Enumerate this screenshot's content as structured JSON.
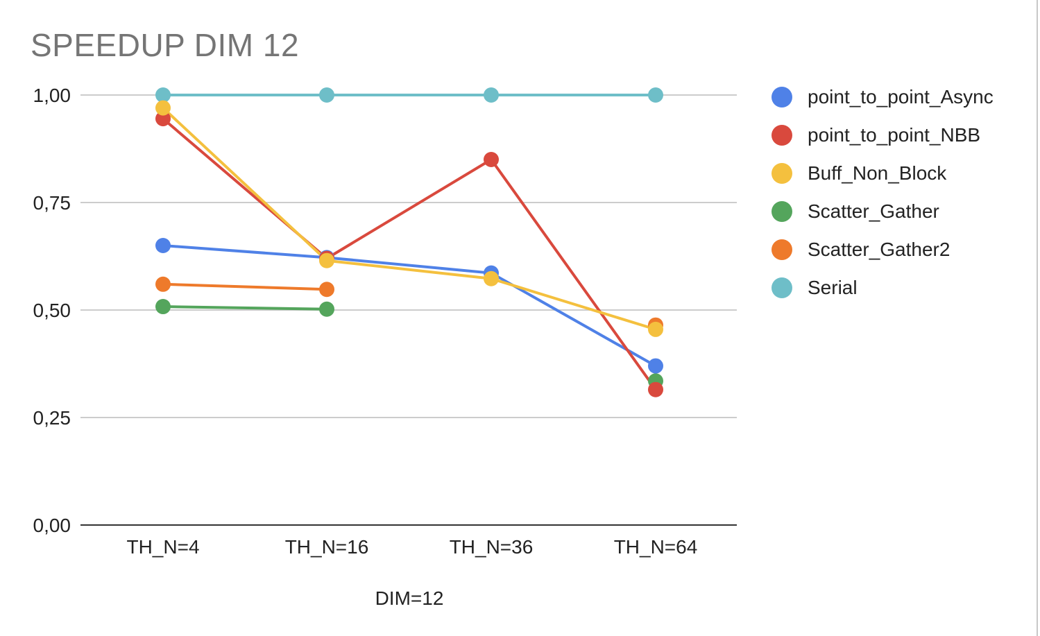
{
  "chart_data": {
    "type": "line",
    "title": "SPEEDUP DIM 12",
    "xlabel": "DIM=12",
    "ylabel": "",
    "categories": [
      "TH_N=4",
      "TH_N=16",
      "TH_N=36",
      "TH_N=64"
    ],
    "ylim": [
      0,
      1
    ],
    "yticks": [
      "0,00",
      "0,25",
      "0,50",
      "0,75",
      "1,00"
    ],
    "ytick_values": [
      0,
      0.25,
      0.5,
      0.75,
      1.0
    ],
    "grid": true,
    "legend_position": "right",
    "series": [
      {
        "name": "point_to_point_Async",
        "color": "#4f81e7",
        "values": [
          0.65,
          0.622,
          0.586,
          0.37
        ]
      },
      {
        "name": "point_to_point_NBB",
        "color": "#d9493d",
        "values": [
          0.945,
          0.62,
          0.85,
          0.315
        ]
      },
      {
        "name": "Buff_Non_Block",
        "color": "#f4c03e",
        "values": [
          0.97,
          0.615,
          0.573,
          0.455
        ]
      },
      {
        "name": "Scatter_Gather",
        "color": "#54a55c",
        "values": [
          0.508,
          0.502,
          null,
          0.335
        ]
      },
      {
        "name": "Scatter_Gather2",
        "color": "#ee7a2b",
        "values": [
          0.56,
          0.548,
          null,
          0.465
        ]
      },
      {
        "name": "Serial",
        "color": "#6ebec8",
        "values": [
          1.0,
          1.0,
          1.0,
          1.0
        ]
      }
    ]
  }
}
